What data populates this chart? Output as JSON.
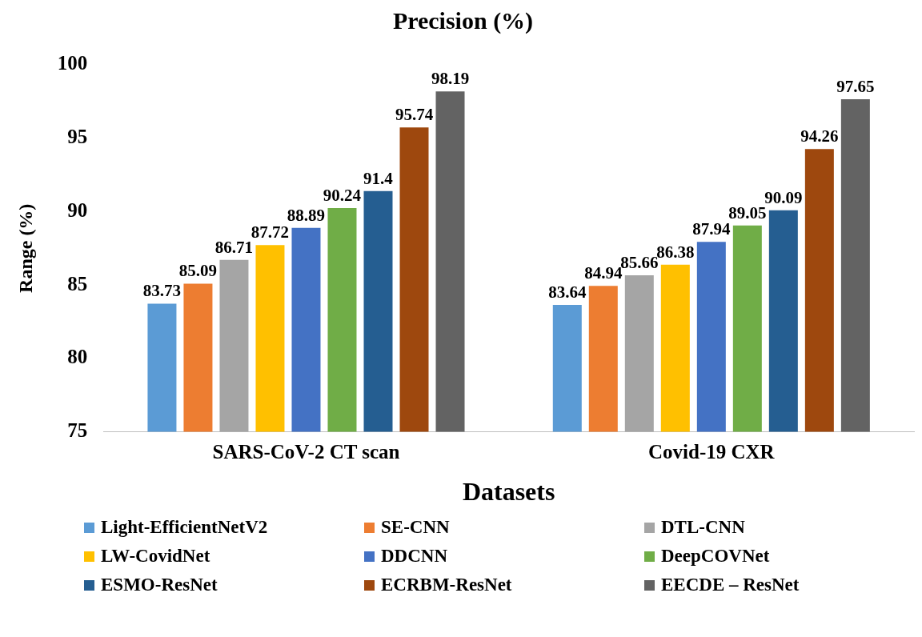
{
  "chart_data": {
    "type": "bar",
    "title": "Precision (%)",
    "xlabel": "Datasets",
    "ylabel": "Range (%)",
    "categories": [
      "SARS-CoV-2 CT scan",
      "Covid-19 CXR"
    ],
    "series": [
      {
        "name": "Light-EfficientNetV2",
        "color": "#5b9bd5",
        "values": [
          83.73,
          83.64
        ]
      },
      {
        "name": "SE-CNN",
        "color": "#ed7d31",
        "values": [
          85.09,
          84.94
        ]
      },
      {
        "name": "DTL-CNN",
        "color": "#a5a5a5",
        "values": [
          86.71,
          85.66
        ]
      },
      {
        "name": "LW-CovidNet",
        "color": "#ffc000",
        "values": [
          87.72,
          86.38
        ]
      },
      {
        "name": "DDCNN",
        "color": "#4472c4",
        "values": [
          88.89,
          87.94
        ]
      },
      {
        "name": "DeepCOVNet",
        "color": "#70ad47",
        "values": [
          90.24,
          89.05
        ]
      },
      {
        "name": "ESMO-ResNet",
        "color": "#255e91",
        "values": [
          91.4,
          90.09
        ]
      },
      {
        "name": "ECRBM-ResNet",
        "color": "#9e480e",
        "values": [
          95.74,
          94.26
        ]
      },
      {
        "name": "EECDE – ResNet",
        "color": "#636363",
        "values": [
          98.19,
          97.65
        ]
      }
    ],
    "ylim": [
      75,
      100
    ],
    "yticks": [
      75,
      80,
      85,
      90,
      95,
      100
    ],
    "grid": false,
    "legend": "bottom",
    "data_labels": true
  }
}
